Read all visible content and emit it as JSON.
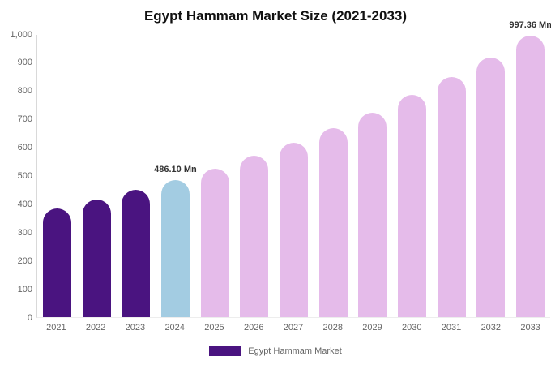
{
  "title": "Egypt Hammam Market Size (2021-2033)",
  "legend": {
    "label": "Egypt Hammam Market",
    "swatch_color": "#4a1480"
  },
  "colors": {
    "historical": "#4a1480",
    "base_year": "#a3cce2",
    "forecast": "#e5bbea",
    "axis_line": "#d9d9d9",
    "tick_text": "#666666",
    "annotation_text": "#333333",
    "background": "#ffffff"
  },
  "chart_data": {
    "type": "bar",
    "title": "Egypt Hammam Market Size (2021-2033)",
    "series_name": "Egypt Hammam Market",
    "unit": "Mn",
    "categories": [
      "2021",
      "2022",
      "2023",
      "2024",
      "2025",
      "2026",
      "2027",
      "2028",
      "2029",
      "2030",
      "2031",
      "2032",
      "2033"
    ],
    "values": [
      385,
      416,
      450,
      486.1,
      527,
      571,
      618,
      670,
      725,
      786,
      851,
      921,
      997.36
    ],
    "color_roles": [
      "historical",
      "historical",
      "historical",
      "base_year",
      "forecast",
      "forecast",
      "forecast",
      "forecast",
      "forecast",
      "forecast",
      "forecast",
      "forecast",
      "forecast"
    ],
    "data_labels": [
      {
        "index": 3,
        "text": "486.10 Mn"
      },
      {
        "index": 12,
        "text": "997.36 Mn"
      }
    ],
    "xlabel": "",
    "ylabel": "",
    "ylim": [
      0,
      1000
    ],
    "y_ticks": [
      {
        "label": "0",
        "value": 0
      },
      {
        "label": "100",
        "value": 100
      },
      {
        "label": "200",
        "value": 200
      },
      {
        "label": "300",
        "value": 300
      },
      {
        "label": "400",
        "value": 400
      },
      {
        "label": "500",
        "value": 500
      },
      {
        "label": "600",
        "value": 600
      },
      {
        "label": "700",
        "value": 700
      },
      {
        "label": "800",
        "value": 800
      },
      {
        "label": "900",
        "value": 900
      },
      {
        "label": "1,000",
        "value": 1000
      }
    ],
    "grid": false,
    "legend_position": "bottom"
  }
}
